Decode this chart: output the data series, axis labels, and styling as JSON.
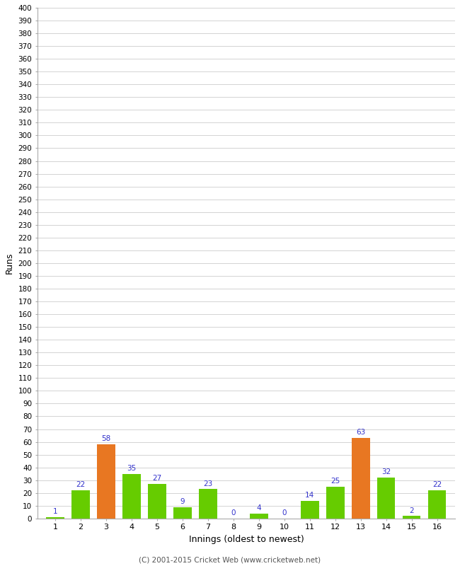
{
  "innings": [
    1,
    2,
    3,
    4,
    5,
    6,
    7,
    8,
    9,
    10,
    11,
    12,
    13,
    14,
    15,
    16
  ],
  "runs": [
    1,
    22,
    58,
    35,
    27,
    9,
    23,
    0,
    4,
    0,
    14,
    25,
    63,
    32,
    2,
    22
  ],
  "colors": [
    "#66cc00",
    "#66cc00",
    "#e87722",
    "#66cc00",
    "#66cc00",
    "#66cc00",
    "#66cc00",
    "#66cc00",
    "#66cc00",
    "#66cc00",
    "#66cc00",
    "#66cc00",
    "#e87722",
    "#66cc00",
    "#66cc00",
    "#66cc00"
  ],
  "xlabel": "Innings (oldest to newest)",
  "ylabel": "Runs",
  "ylim": [
    0,
    400
  ],
  "title": "",
  "footer": "(C) 2001-2015 Cricket Web (www.cricketweb.net)",
  "label_color": "#3333cc",
  "bg_color": "#ffffff",
  "grid_color": "#cccccc"
}
